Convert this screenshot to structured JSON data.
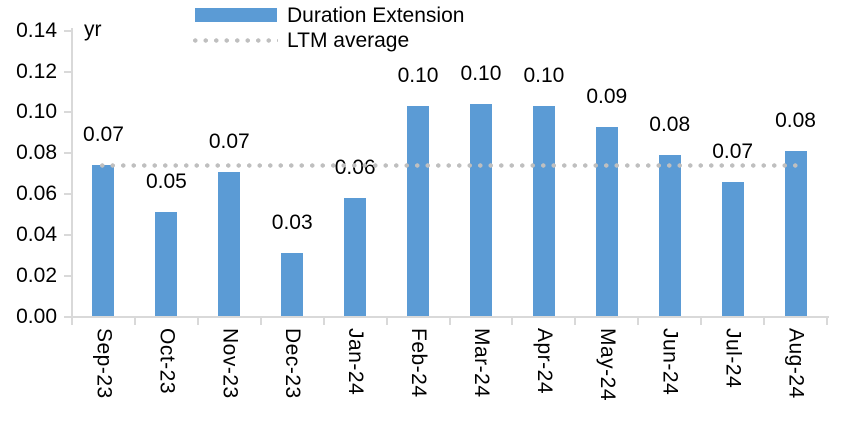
{
  "chart_data": {
    "type": "bar",
    "title": "",
    "unit_label": "yr",
    "categories": [
      "Sep-23",
      "Oct-23",
      "Nov-23",
      "Dec-23",
      "Jan-24",
      "Feb-24",
      "Mar-24",
      "Apr-24",
      "May-24",
      "Jun-24",
      "Jul-24",
      "Aug-24"
    ],
    "series": [
      {
        "name": "Duration Extension",
        "values": [
          0.074,
          0.051,
          0.071,
          0.031,
          0.058,
          0.103,
          0.104,
          0.103,
          0.093,
          0.079,
          0.066,
          0.081
        ],
        "data_labels": [
          "0.07",
          "0.05",
          "0.07",
          "0.03",
          "0.06",
          "0.10",
          "0.10",
          "0.10",
          "0.09",
          "0.08",
          "0.07",
          "0.08"
        ],
        "color": "#5B9BD5"
      }
    ],
    "reference_line": {
      "name": "LTM average",
      "value": 0.074,
      "style": "dotted",
      "color": "#BFBFBF"
    },
    "y_axis": {
      "min": 0.0,
      "max": 0.14,
      "step": 0.02,
      "tick_labels": [
        "0.00",
        "0.02",
        "0.04",
        "0.06",
        "0.08",
        "0.10",
        "0.12",
        "0.14"
      ]
    },
    "x_axis": {
      "label_rotation_deg": 90
    },
    "legend": {
      "position": "top",
      "entries": [
        "Duration Extension",
        "LTM average"
      ]
    },
    "grid": false,
    "colors": {
      "bar": "#5B9BD5",
      "dotted_line": "#BFBFBF",
      "axis": "#D9D9D9",
      "text": "#000000",
      "background": "#FFFFFF"
    }
  }
}
